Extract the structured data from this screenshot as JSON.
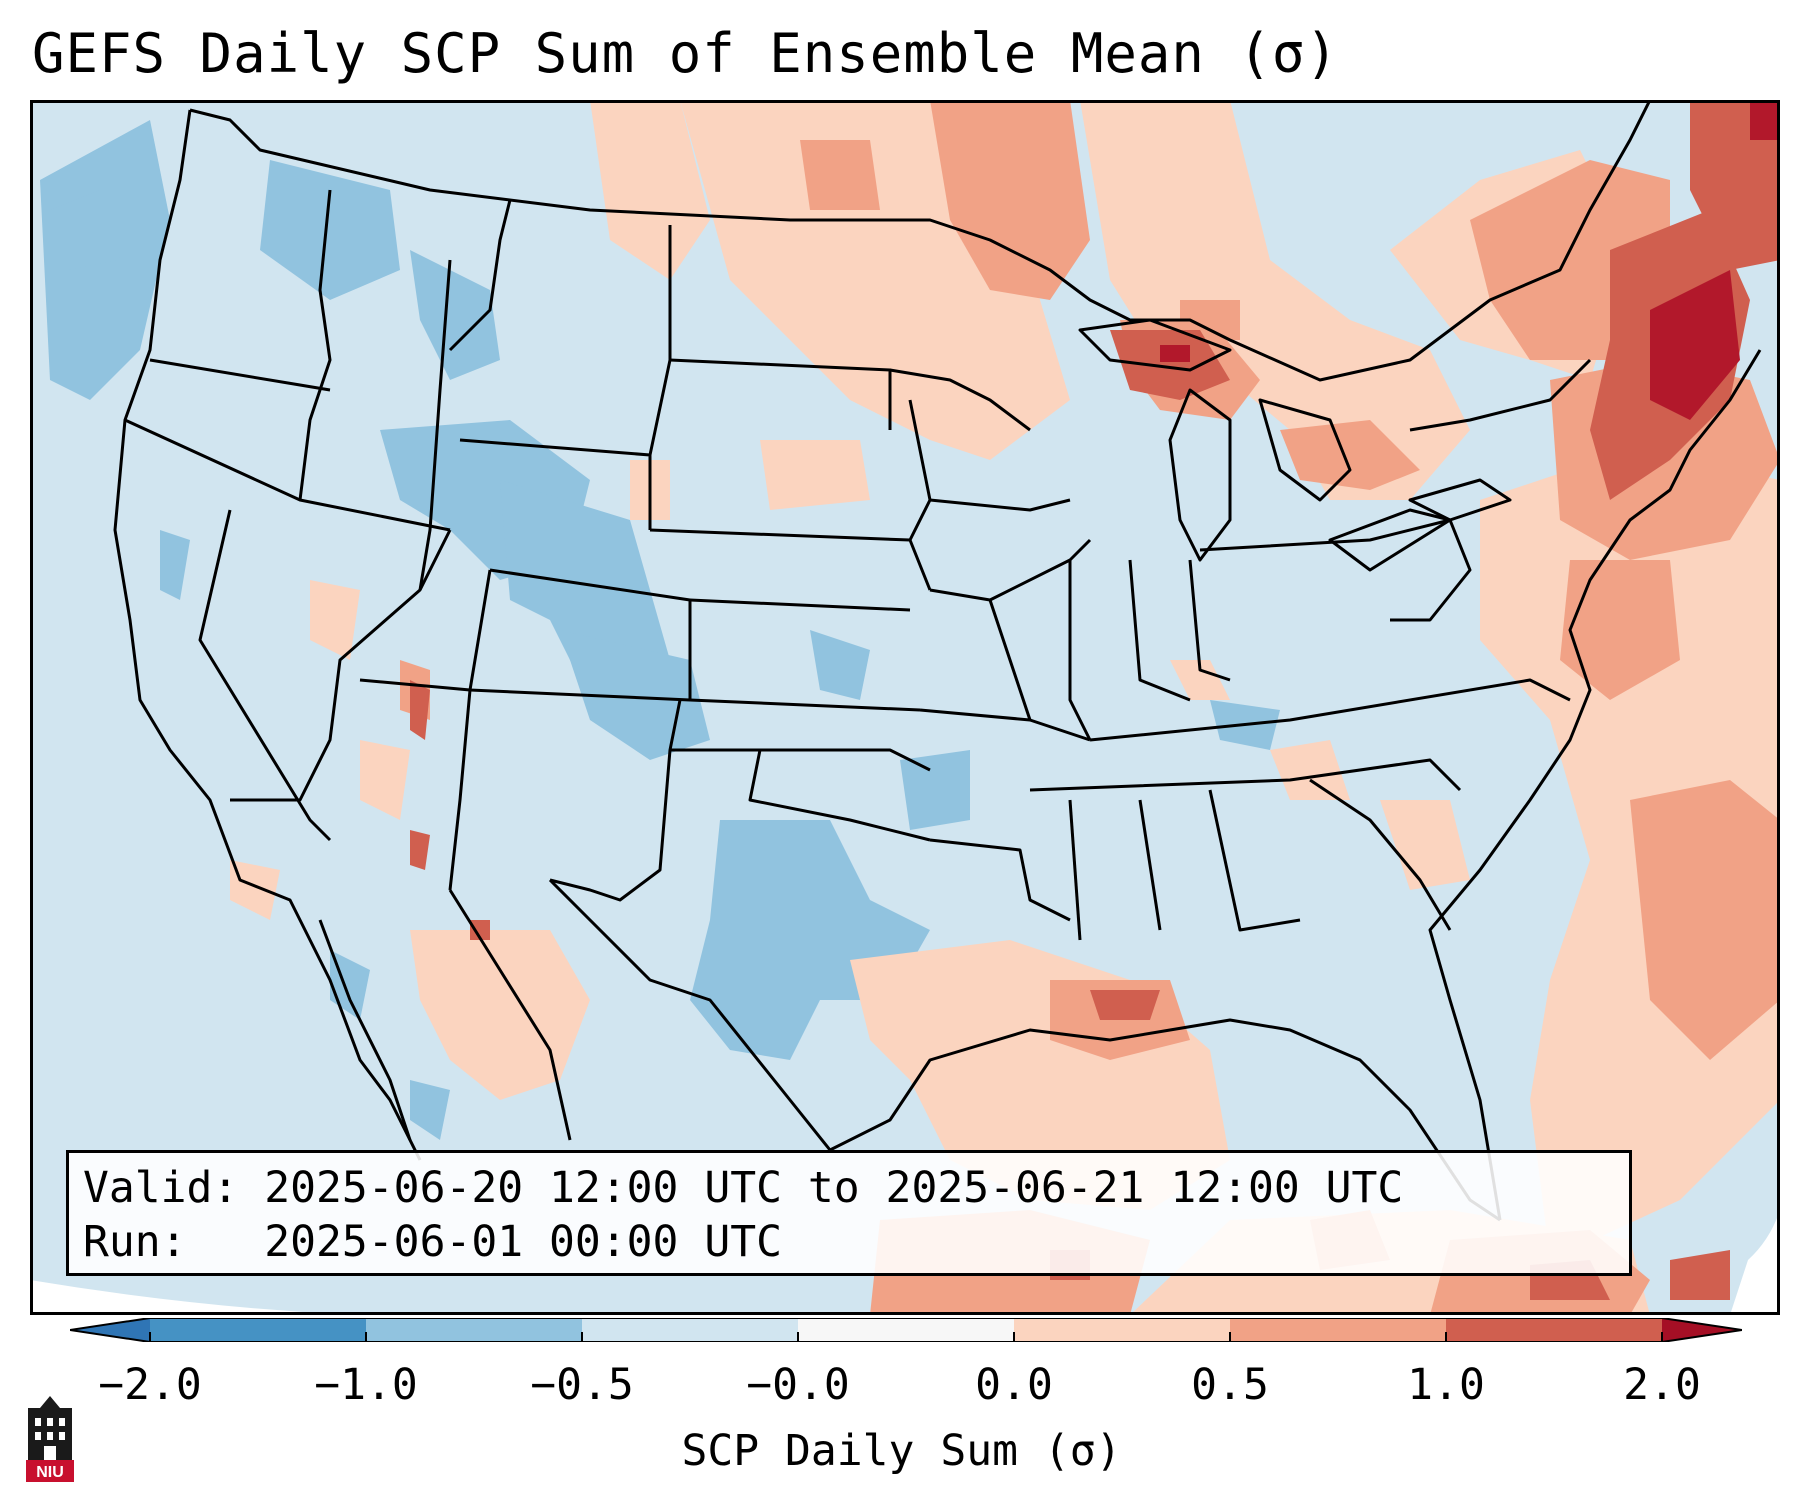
{
  "title": "GEFS Daily SCP Sum of Ensemble Mean (σ)",
  "info": {
    "valid_label": "Valid:",
    "valid_value": "2025-06-20 12:00 UTC to 2025-06-21 12:00 UTC",
    "run_label": "Run:",
    "run_value": "2025-06-01 00:00 UTC"
  },
  "colorbar": {
    "label": "SCP Daily Sum (σ)",
    "ticks": [
      "−2.0",
      "−1.0",
      "−0.5",
      "−0.0",
      "0.0",
      "0.5",
      "1.0",
      "2.0"
    ],
    "colors": [
      "#4592c4",
      "#91c3df",
      "#d1e5f0",
      "#f7f7f7",
      "#fbd4bf",
      "#f1a286",
      "#d05f4f",
      "#b2182b"
    ],
    "extend_low_color": "#2f75b5",
    "extend_high_color": "#a50f25"
  },
  "logo": {
    "text": "NIU",
    "icon": "niu-logo-icon"
  },
  "map": {
    "region": "Contiguous United States",
    "field": "SCP daily sum anomaly",
    "background_color": "#d1e5f0"
  }
}
